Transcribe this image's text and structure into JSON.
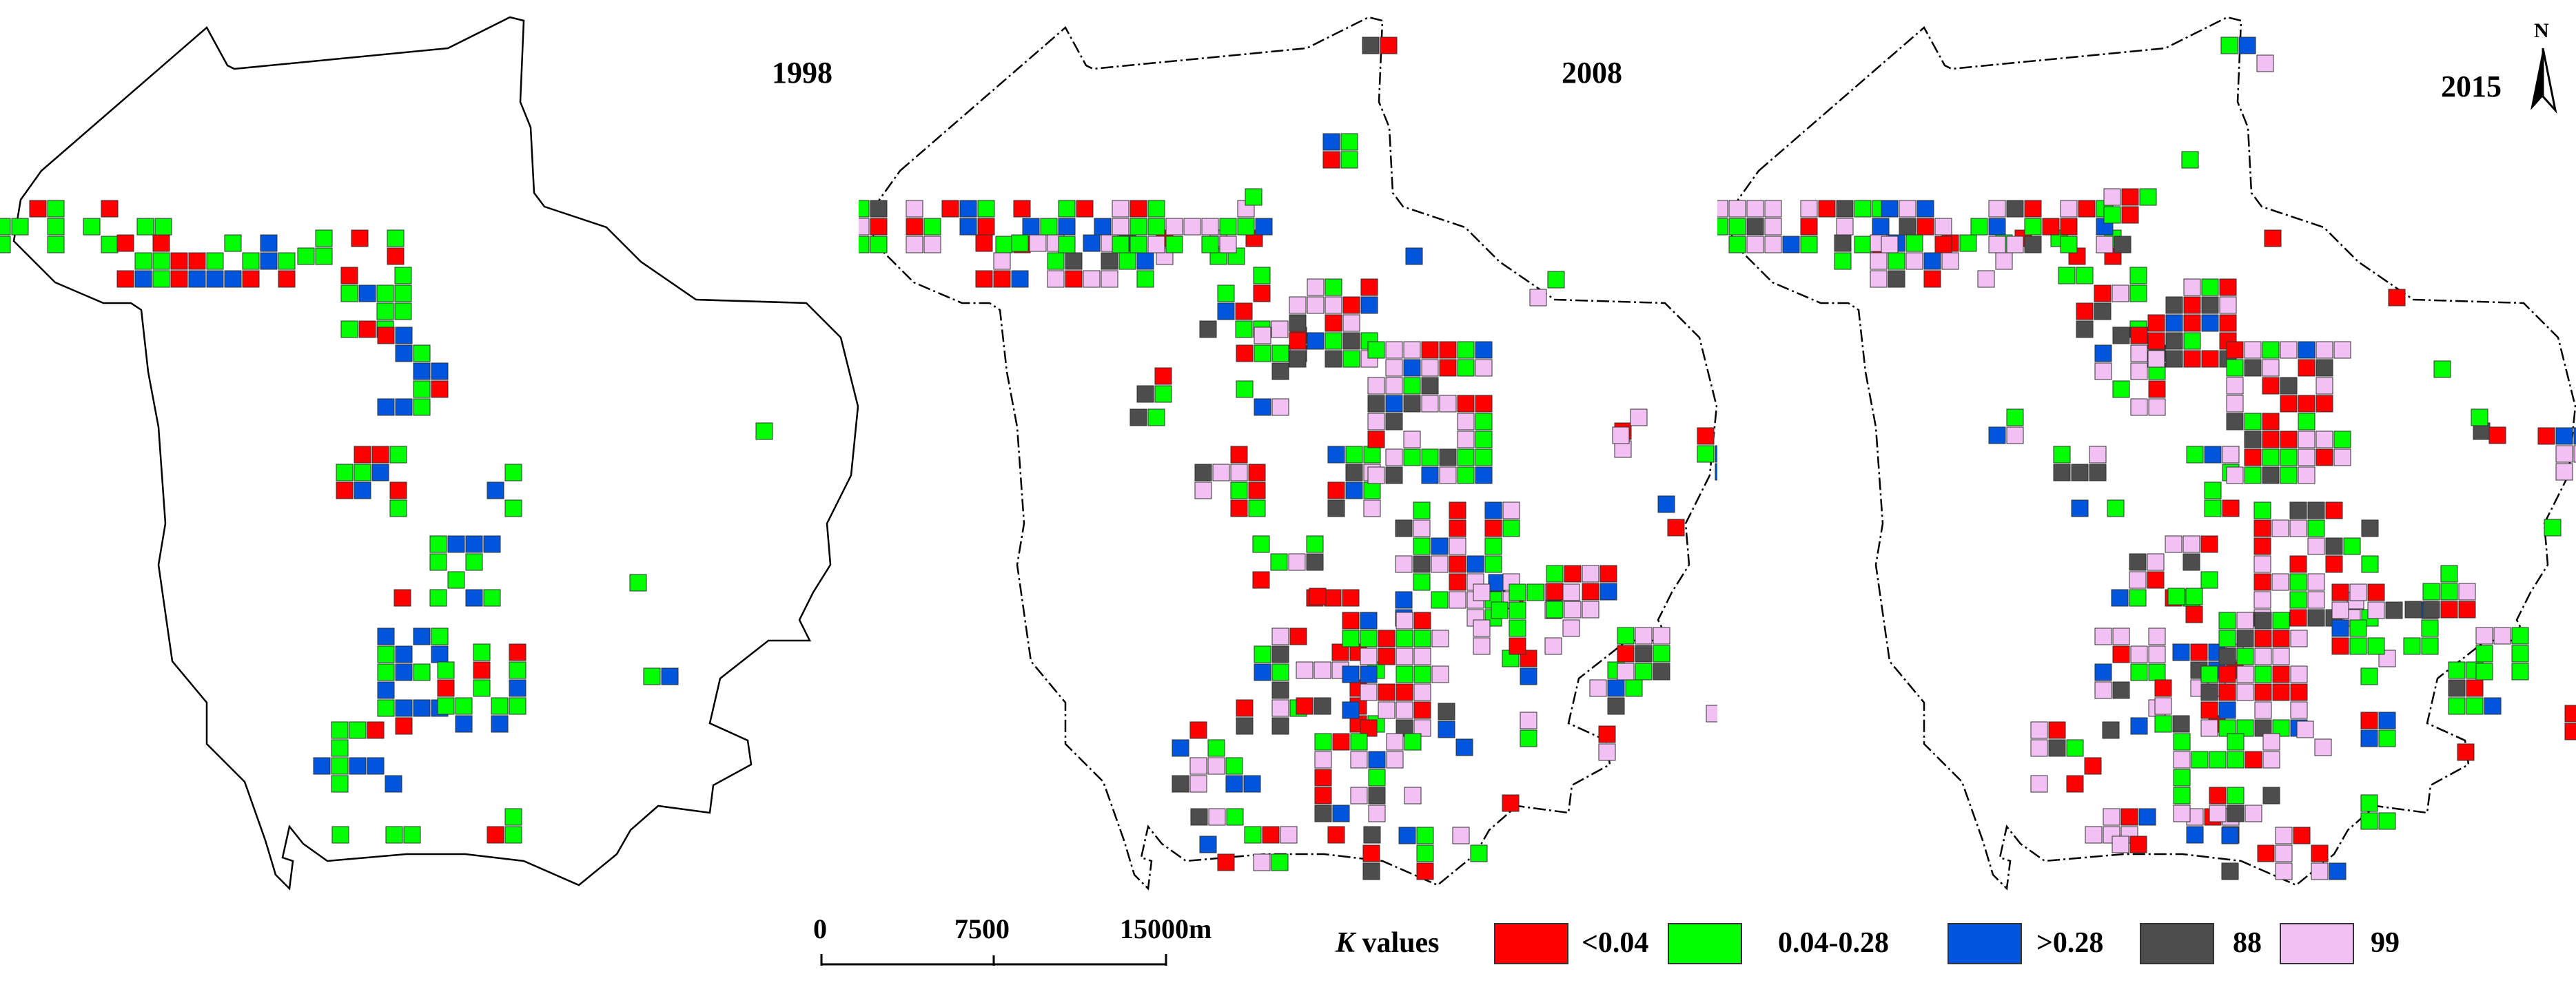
{
  "figure": {
    "panels": [
      {
        "year": "1998"
      },
      {
        "year": "2008"
      },
      {
        "year": "2015"
      }
    ],
    "north_arrow": {
      "letter": "N"
    },
    "scalebar": {
      "ticks": [
        "0",
        "7500",
        "15000m"
      ]
    },
    "legend": {
      "title_italic": "K",
      "title_rest": " values",
      "items": [
        {
          "label": "<0.04",
          "color": "#ff0000"
        },
        {
          "label": "0.04-0.28",
          "color": "#00ff00"
        },
        {
          "label": ">0.28",
          "color": "#0055dd"
        },
        {
          "label": "88",
          "color": "#4d4d4d"
        },
        {
          "label": "99",
          "color": "#f3c0f3"
        }
      ]
    }
  }
}
